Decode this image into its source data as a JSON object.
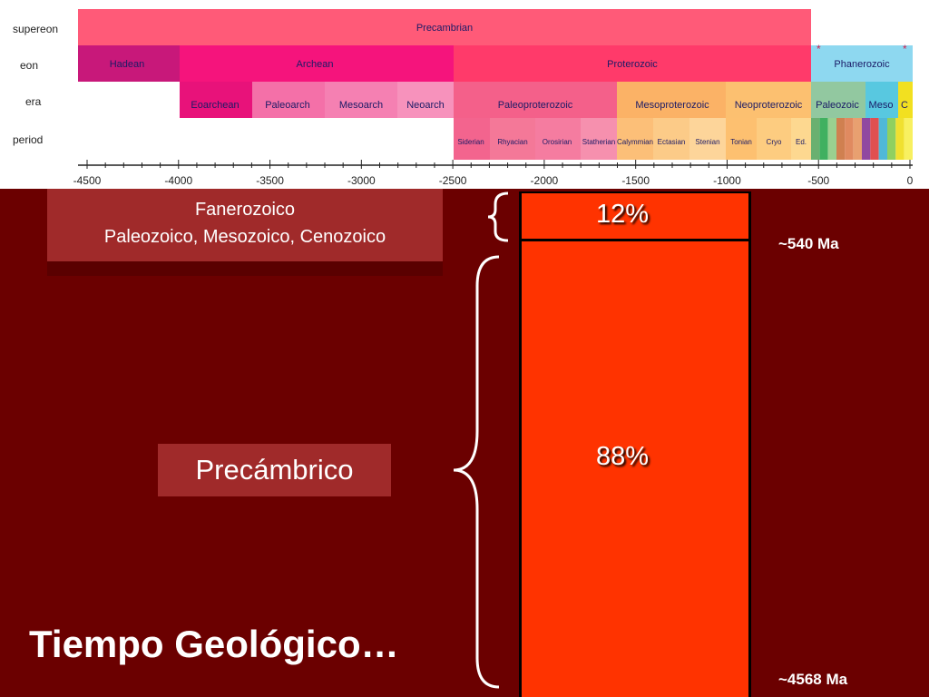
{
  "timescale": {
    "row_labels": [
      "supereon",
      "eon",
      "era",
      "period"
    ],
    "supereon": [
      {
        "label": "Precambrian",
        "color": "#ff5a78"
      }
    ],
    "eons": [
      {
        "label": "Hadean",
        "color": "#c8187a"
      },
      {
        "label": "Archean",
        "color": "#f5147c"
      },
      {
        "label": "Proterozoic",
        "color": "#ff3a6a"
      },
      {
        "label": "Phanerozoic",
        "color": "#8ed8f0"
      }
    ],
    "eras": [
      {
        "label": "Eoarchean",
        "color": "#e8127a"
      },
      {
        "label": "Paleoarch",
        "color": "#f470a8"
      },
      {
        "label": "Mesoarch",
        "color": "#f580b2"
      },
      {
        "label": "Neoarch",
        "color": "#f792bc"
      },
      {
        "label": "Paleoproterozoic",
        "color": "#f4608a"
      },
      {
        "label": "Mesoproterozoic",
        "color": "#fbb266"
      },
      {
        "label": "Neoproterozoic",
        "color": "#fcc070"
      },
      {
        "label": "Paleozoic",
        "color": "#92c8a0"
      },
      {
        "label": "Meso",
        "color": "#58c8e0"
      },
      {
        "label": "C",
        "color": "#f2e020"
      }
    ],
    "periods": [
      {
        "label": "Siderian",
        "color": "#f3648e"
      },
      {
        "label": "Rhyacian",
        "color": "#f47898"
      },
      {
        "label": "Orosirian",
        "color": "#f57ca0"
      },
      {
        "label": "Statherian",
        "color": "#f690ae"
      },
      {
        "label": "Calymmian",
        "color": "#fcbf78"
      },
      {
        "label": "Ectasian",
        "color": "#fccb88"
      },
      {
        "label": "Stenian",
        "color": "#fdd59a"
      },
      {
        "label": "Tonian",
        "color": "#fdc070"
      },
      {
        "label": "Cryo",
        "color": "#fdcc80"
      },
      {
        "label": "Ed.",
        "color": "#fdd890"
      }
    ],
    "phanerozoic_periods": [
      "#6ab070",
      "#40b060",
      "#9ad090",
      "#d08050",
      "#e08a60",
      "#e8a070",
      "#9048a0",
      "#e05050",
      "#50b8d8",
      "#90d060",
      "#f0e030",
      "#f8f060"
    ],
    "axis_ticks": [
      "-4500",
      "-4000",
      "-3500",
      "-3000",
      "-2500",
      "-2000",
      "-1500",
      "-1000",
      "-500",
      "0"
    ],
    "star": "*"
  },
  "callouts": {
    "phanerozoic_line1": "Fanerozoico",
    "phanerozoic_line2": "Paleozoico, Mesozoico, Cenozoico",
    "precambrian": "Precámbrico"
  },
  "column": {
    "top_percent": "12%",
    "bottom_percent": "88%",
    "top_color": "#ff3300",
    "bottom_color": "#ff3300"
  },
  "ages": {
    "top": "~540 Ma",
    "bottom": "~4568 Ma"
  },
  "title": "Tiempo Geológico…"
}
